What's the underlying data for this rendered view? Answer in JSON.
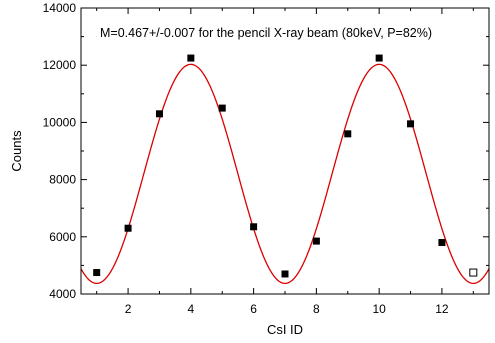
{
  "chart_data": {
    "type": "scatter",
    "title": "",
    "annotation": "M=0.467+/-0.007 for the pencil X-ray beam (80keV, P=82%)",
    "xlabel": "CsI ID",
    "ylabel": "Counts",
    "xlim": [
      0.5,
      13.5
    ],
    "ylim": [
      4000,
      14000
    ],
    "xticks": [
      2,
      4,
      6,
      8,
      10,
      12
    ],
    "xtick_labels": [
      "2",
      "4",
      "6",
      "8",
      "10",
      "12"
    ],
    "yticks": [
      4000,
      6000,
      8000,
      10000,
      12000,
      14000
    ],
    "ytick_labels": [
      "4000",
      "6000",
      "8000",
      "10000",
      "12000",
      "14000"
    ],
    "grid": false,
    "series": [
      {
        "kind": "points",
        "marker": "filled-square",
        "color": "#000000",
        "x": [
          1,
          2,
          3,
          4,
          5,
          6,
          7,
          8,
          9,
          10,
          11,
          12
        ],
        "y": [
          4750,
          6300,
          10300,
          12250,
          10500,
          6350,
          4700,
          5850,
          9600,
          12250,
          9950,
          5800
        ]
      },
      {
        "kind": "points",
        "marker": "open-square",
        "color": "#000000",
        "x": [
          13
        ],
        "y": [
          4750
        ]
      },
      {
        "kind": "fit",
        "color": "#dd0000",
        "model": "A + B*cos(2*pi*(x - x0)/6)",
        "A": 8200,
        "B": 3830,
        "x0": 4
      }
    ]
  }
}
